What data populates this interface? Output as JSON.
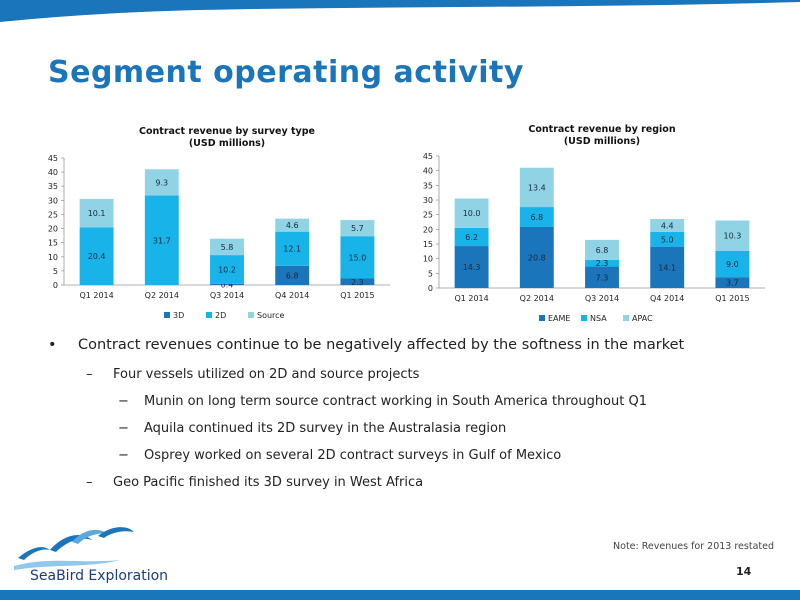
{
  "slide": {
    "title": "Segment operating activity",
    "note": "Note: Revenues for 2013 restated",
    "page_number": "14",
    "logo_text": "SeaBird Exploration"
  },
  "colors": {
    "band": "#1b75bb",
    "dark_blue": "#1b75bb",
    "light_blue": "#18b4e9",
    "pale_blue": "#8fd3e4"
  },
  "bullets": [
    {
      "level": 1,
      "text": "Contract revenues continue to be negatively affected by the softness in the market"
    },
    {
      "level": 2,
      "text": "Four vessels utilized on 2D and source projects"
    },
    {
      "level": 3,
      "text": "Munin on long term source contract working in South America throughout Q1"
    },
    {
      "level": 3,
      "text": "Aquila continued its 2D survey in the Australasia region"
    },
    {
      "level": 3,
      "text": "Osprey worked on several 2D contract surveys in Gulf of Mexico"
    },
    {
      "level": 2,
      "text": "Geo Pacific finished its 3D survey in West Africa"
    }
  ],
  "chart_data": [
    {
      "type": "bar",
      "stacked": true,
      "title": "Contract revenue by survey type",
      "subtitle": "(USD millions)",
      "categories": [
        "Q1 2014",
        "Q2 2014",
        "Q3 2014",
        "Q4 2014",
        "Q1 2015"
      ],
      "ylim": [
        0,
        45
      ],
      "yticks": [
        0,
        5,
        10,
        15,
        20,
        25,
        30,
        35,
        40,
        45
      ],
      "legend_position": "bottom",
      "series": [
        {
          "name": "3D",
          "color": "#1b75bb",
          "values": [
            0,
            0,
            0.4,
            6.8,
            2.3
          ],
          "labels": [
            "",
            "",
            "0.4",
            "6.8",
            "2.3"
          ]
        },
        {
          "name": "2D",
          "color": "#18b4e9",
          "values": [
            20.4,
            31.7,
            10.2,
            12.1,
            15.0
          ],
          "labels": [
            "20.4",
            "31.7",
            "10.2",
            "12.1",
            "15.0"
          ]
        },
        {
          "name": "Source",
          "color": "#8fd3e4",
          "values": [
            10.1,
            9.3,
            5.8,
            4.6,
            5.7
          ],
          "labels": [
            "10.1",
            "9.3",
            "5.8",
            "4.6",
            "5.7"
          ]
        }
      ]
    },
    {
      "type": "bar",
      "stacked": true,
      "title": "Contract revenue by region",
      "subtitle": "(USD millions)",
      "categories": [
        "Q1 2014",
        "Q2 2014",
        "Q3 2014",
        "Q4 2014",
        "Q1 2015"
      ],
      "ylim": [
        0,
        45
      ],
      "yticks": [
        0,
        5,
        10,
        15,
        20,
        25,
        30,
        35,
        40,
        45
      ],
      "legend_position": "bottom",
      "series": [
        {
          "name": "EAME",
          "color": "#1b75bb",
          "values": [
            14.3,
            20.8,
            7.3,
            14.1,
            3.7
          ],
          "labels": [
            "14.3",
            "20.8",
            "7.3",
            "14.1",
            "3.7"
          ]
        },
        {
          "name": "NSA",
          "color": "#18b4e9",
          "values": [
            6.2,
            6.8,
            2.3,
            5.0,
            9.0
          ],
          "labels": [
            "6.2",
            "6.8",
            "2.3",
            "5.0",
            "9.0"
          ]
        },
        {
          "name": "APAC",
          "color": "#8fd3e4",
          "values": [
            10.0,
            13.4,
            6.8,
            4.4,
            10.3
          ],
          "labels": [
            "10.0",
            "13.4",
            "6.8",
            "4.4",
            "10.3"
          ]
        }
      ]
    }
  ]
}
